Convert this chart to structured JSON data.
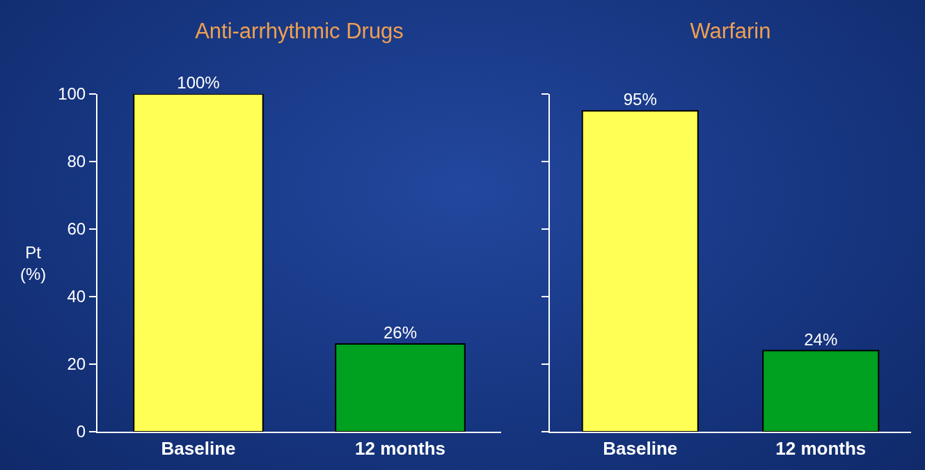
{
  "chart_data": [
    {
      "type": "bar",
      "title": "Anti-arrhythmic Drugs",
      "ylabel": "Pt (%)",
      "categories": [
        "Baseline",
        "12 months"
      ],
      "values": [
        100,
        26
      ],
      "colors": [
        "#ffff55",
        "#00a020"
      ],
      "value_labels": [
        "100%",
        "26%"
      ],
      "ylim": [
        0,
        100
      ],
      "yticks": [
        0,
        20,
        40,
        60,
        80,
        100
      ],
      "grid": false,
      "legend": false
    },
    {
      "type": "bar",
      "title": "Warfarin",
      "categories": [
        "Baseline",
        "12 months"
      ],
      "values": [
        95,
        24
      ],
      "colors": [
        "#ffff55",
        "#00a020"
      ],
      "value_labels": [
        "95%",
        "24%"
      ],
      "ylim": [
        0,
        100
      ],
      "yticks": [
        0,
        20,
        40,
        60,
        80,
        100
      ],
      "tick_labels": "x",
      "grid": false,
      "legend": false
    }
  ]
}
